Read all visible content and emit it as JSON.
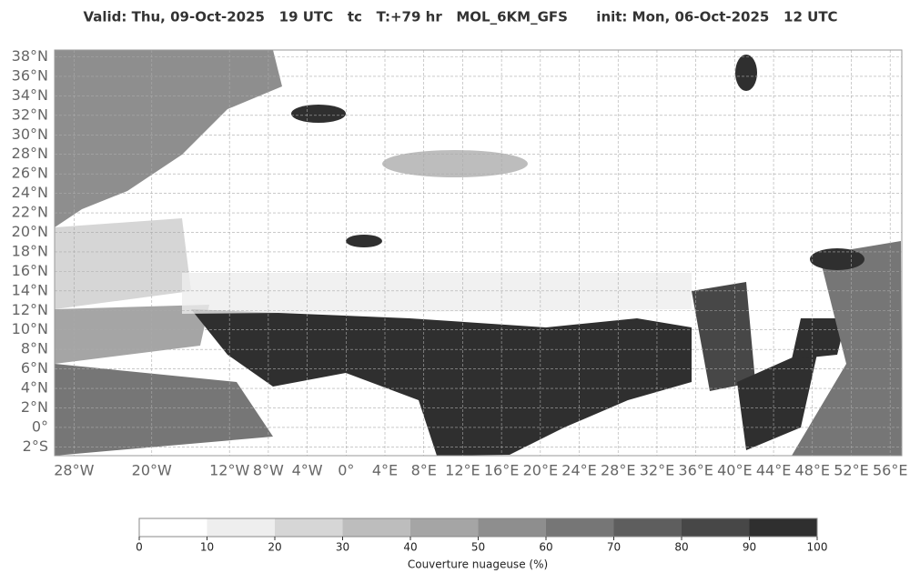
{
  "title": "Valid: Thu, 09-Oct-2025   19 UTC   tc   T:+79 hr   MOL_6KM_GFS      init: Mon, 06-Oct-2025   12 UTC",
  "map": {
    "lon_range": [
      -30,
      57.2
    ],
    "lat_range": [
      -2.9,
      38.7
    ],
    "lat_ticks": [
      {
        "value": 38,
        "label": "38°N"
      },
      {
        "value": 36,
        "label": "36°N"
      },
      {
        "value": 34,
        "label": "34°N"
      },
      {
        "value": 32,
        "label": "32°N"
      },
      {
        "value": 30,
        "label": "30°N"
      },
      {
        "value": 28,
        "label": "28°N"
      },
      {
        "value": 26,
        "label": "26°N"
      },
      {
        "value": 24,
        "label": "24°N"
      },
      {
        "value": 22,
        "label": "22°N"
      },
      {
        "value": 20,
        "label": "20°N"
      },
      {
        "value": 18,
        "label": "18°N"
      },
      {
        "value": 16,
        "label": "16°N"
      },
      {
        "value": 14,
        "label": "14°N"
      },
      {
        "value": 12,
        "label": "12°N"
      },
      {
        "value": 10,
        "label": "10°N"
      },
      {
        "value": 8,
        "label": "8°N"
      },
      {
        "value": 6,
        "label": "6°N"
      },
      {
        "value": 4,
        "label": "4°N"
      },
      {
        "value": 2,
        "label": "2°N"
      },
      {
        "value": 0,
        "label": "0°"
      },
      {
        "value": -2,
        "label": "2°S"
      }
    ],
    "lon_ticks": [
      {
        "value": -28,
        "label": "28°W"
      },
      {
        "value": -20,
        "label": "20°W"
      },
      {
        "value": -12,
        "label": "12°W"
      },
      {
        "value": -8,
        "label": "8°W"
      },
      {
        "value": -4,
        "label": "4°W"
      },
      {
        "value": 0,
        "label": "0°"
      },
      {
        "value": 4,
        "label": "4°E"
      },
      {
        "value": 8,
        "label": "8°E"
      },
      {
        "value": 12,
        "label": "12°E"
      },
      {
        "value": 16,
        "label": "16°E"
      },
      {
        "value": 20,
        "label": "20°E"
      },
      {
        "value": 24,
        "label": "24°E"
      },
      {
        "value": 28,
        "label": "28°E"
      },
      {
        "value": 32,
        "label": "32°E"
      },
      {
        "value": 36,
        "label": "36°E"
      },
      {
        "value": 40,
        "label": "40°E"
      },
      {
        "value": 44,
        "label": "44°E"
      },
      {
        "value": 48,
        "label": "48°E"
      },
      {
        "value": 52,
        "label": "52°E"
      },
      {
        "value": 56,
        "label": "56°E"
      }
    ]
  },
  "colorbar": {
    "ticks": [
      0,
      10,
      20,
      30,
      40,
      50,
      60,
      70,
      80,
      90,
      100
    ],
    "colors": [
      "#ffffff",
      "#eeeeee",
      "#d6d6d6",
      "#bdbdbd",
      "#a5a5a5",
      "#8e8e8e",
      "#767676",
      "#5e5e5e",
      "#474747",
      "#2f2f2f"
    ],
    "label": "Couverture nuageuse (%)"
  }
}
